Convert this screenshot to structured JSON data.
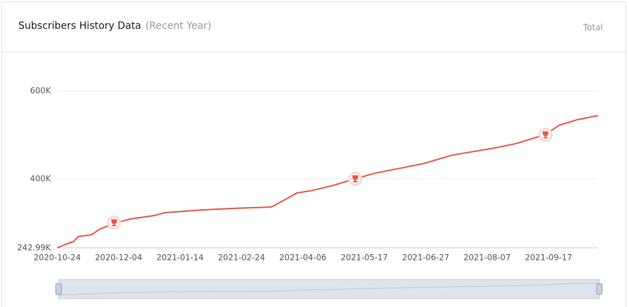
{
  "header": {
    "title": "Subscribers History Data",
    "subtitle": "(Recent Year)",
    "button": "Total"
  },
  "chart_data": {
    "type": "line",
    "x": [
      "2020-10-24",
      "2020-10-31",
      "2020-11-04",
      "2020-11-07",
      "2020-11-16",
      "2020-11-21",
      "2020-12-01",
      "2020-12-12",
      "2020-12-28",
      "2021-01-04",
      "2021-01-30",
      "2021-02-18",
      "2021-03-16",
      "2021-03-23",
      "2021-04-02",
      "2021-04-11",
      "2021-04-25",
      "2021-05-11",
      "2021-05-24",
      "2021-06-12",
      "2021-06-26",
      "2021-07-15",
      "2021-08-12",
      "2021-08-26",
      "2021-09-15",
      "2021-09-24",
      "2021-10-06",
      "2021-10-20"
    ],
    "series": [
      {
        "name": "Subscribers",
        "color": "#e8574a",
        "values": [
          242990,
          252600,
          257400,
          268600,
          273000,
          284600,
          299000,
          308600,
          316600,
          323000,
          329400,
          332600,
          335800,
          348600,
          367800,
          372600,
          383800,
          400000,
          412600,
          425400,
          435000,
          454000,
          470000,
          479800,
          500600,
          521400,
          534200,
          543800
        ]
      }
    ],
    "milestones": [
      {
        "x": "2020-12-01",
        "y": 300000
      },
      {
        "x": "2021-05-11",
        "y": 400000
      },
      {
        "x": "2021-09-15",
        "y": 500000
      }
    ],
    "xlim": [
      "2020-10-24",
      "2021-10-20"
    ],
    "xticks": [
      "2020-10-24",
      "2020-12-04",
      "2021-01-14",
      "2021-02-24",
      "2021-04-06",
      "2021-05-17",
      "2021-06-27",
      "2021-08-07",
      "2021-09-17"
    ],
    "ylim": [
      242990,
      600000
    ],
    "yticks": [
      {
        "value": 242990,
        "label": "242.99K"
      },
      {
        "value": 400000,
        "label": "400K"
      },
      {
        "value": 600000,
        "label": "600K"
      }
    ],
    "grid": true
  }
}
